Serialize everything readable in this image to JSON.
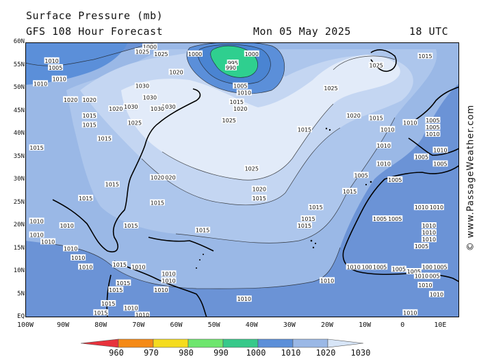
{
  "header": {
    "title": "Surface Pressure (mb)",
    "subtitle": "GFS 108 Hour Forecast",
    "date": "Mon 05 May 2025",
    "time": "18 UTC"
  },
  "credit": "© www.PassageWeather.com",
  "map": {
    "lat_labels": [
      "60N",
      "55N",
      "50N",
      "45N",
      "40N",
      "35N",
      "30N",
      "25N",
      "20N",
      "15N",
      "10N",
      "5N",
      "EQ"
    ],
    "lon_labels": [
      "100W",
      "90W",
      "80W",
      "70W",
      "60W",
      "50W",
      "40W",
      "30W",
      "20W",
      "10W",
      "0",
      "10E"
    ],
    "isobar_labels": [
      {
        "text": "1000",
        "lon": -67,
        "lat": 59
      },
      {
        "text": "1025",
        "lon": -69,
        "lat": 58
      },
      {
        "text": "1025",
        "lon": -64,
        "lat": 57.5
      },
      {
        "text": "1010",
        "lon": -93,
        "lat": 56
      },
      {
        "text": "1005",
        "lon": -92,
        "lat": 54.5
      },
      {
        "text": "1010",
        "lon": -96,
        "lat": 51
      },
      {
        "text": "1010",
        "lon": -91,
        "lat": 52
      },
      {
        "text": "1020",
        "lon": -60,
        "lat": 53.5
      },
      {
        "text": "1000",
        "lon": -55,
        "lat": 57.5
      },
      {
        "text": "1000",
        "lon": -40,
        "lat": 57.5
      },
      {
        "text": "995",
        "lon": -45,
        "lat": 55.5
      },
      {
        "text": "990",
        "lon": -45.5,
        "lat": 54.5
      },
      {
        "text": "1005",
        "lon": -43,
        "lat": 50.5
      },
      {
        "text": "1010",
        "lon": -42,
        "lat": 49
      },
      {
        "text": "1015",
        "lon": -44,
        "lat": 47
      },
      {
        "text": "1020",
        "lon": -43,
        "lat": 45.5
      },
      {
        "text": "1030",
        "lon": -69,
        "lat": 50.5
      },
      {
        "text": "1030",
        "lon": -67,
        "lat": 48
      },
      {
        "text": "1030",
        "lon": -72,
        "lat": 46
      },
      {
        "text": "1030",
        "lon": -62,
        "lat": 46
      },
      {
        "text": "1030",
        "lon": -65,
        "lat": 45.5
      },
      {
        "text": "1020",
        "lon": -88,
        "lat": 47.5
      },
      {
        "text": "1020",
        "lon": -83,
        "lat": 47.5
      },
      {
        "text": "1020",
        "lon": -76,
        "lat": 45.5
      },
      {
        "text": "1015",
        "lon": -83,
        "lat": 44
      },
      {
        "text": "1015",
        "lon": -83,
        "lat": 42
      },
      {
        "text": "1025",
        "lon": -71,
        "lat": 42.5
      },
      {
        "text": "1015",
        "lon": -79,
        "lat": 39
      },
      {
        "text": "1025",
        "lon": -46,
        "lat": 43
      },
      {
        "text": "1025",
        "lon": -40,
        "lat": 32.5
      },
      {
        "text": "1025",
        "lon": -7,
        "lat": 55
      },
      {
        "text": "1025",
        "lon": -19,
        "lat": 50
      },
      {
        "text": "1015",
        "lon": 6,
        "lat": 57
      },
      {
        "text": "1020",
        "lon": -13,
        "lat": 44
      },
      {
        "text": "1015",
        "lon": -26,
        "lat": 41
      },
      {
        "text": "1015",
        "lon": -7,
        "lat": 43.5
      },
      {
        "text": "1010",
        "lon": -4,
        "lat": 41
      },
      {
        "text": "1010",
        "lon": 2,
        "lat": 42.5
      },
      {
        "text": "1010",
        "lon": -5,
        "lat": 37.5
      },
      {
        "text": "1005",
        "lon": 8,
        "lat": 43
      },
      {
        "text": "1005",
        "lon": 8,
        "lat": 41.5
      },
      {
        "text": "1010",
        "lon": 8,
        "lat": 40
      },
      {
        "text": "1010",
        "lon": 10,
        "lat": 36.5
      },
      {
        "text": "1005",
        "lon": 5,
        "lat": 35
      },
      {
        "text": "1005",
        "lon": 10,
        "lat": 33.5
      },
      {
        "text": "1010",
        "lon": -5,
        "lat": 33.5
      },
      {
        "text": "1005",
        "lon": -11,
        "lat": 31
      },
      {
        "text": "1005",
        "lon": -2,
        "lat": 30
      },
      {
        "text": "1015",
        "lon": -14,
        "lat": 27.5
      },
      {
        "text": "1015",
        "lon": -23,
        "lat": 24
      },
      {
        "text": "1015",
        "lon": -25,
        "lat": 21.5
      },
      {
        "text": "1015",
        "lon": -26,
        "lat": 20
      },
      {
        "text": "1005",
        "lon": -6,
        "lat": 21.5
      },
      {
        "text": "1005",
        "lon": -2,
        "lat": 21.5
      },
      {
        "text": "1010",
        "lon": 5,
        "lat": 24
      },
      {
        "text": "1010",
        "lon": 9,
        "lat": 24
      },
      {
        "text": "1010",
        "lon": 7,
        "lat": 20
      },
      {
        "text": "1010",
        "lon": 7,
        "lat": 18.5
      },
      {
        "text": "1010",
        "lon": 7,
        "lat": 17
      },
      {
        "text": "1005",
        "lon": 5,
        "lat": 15.5
      },
      {
        "text": "1010",
        "lon": -13,
        "lat": 11
      },
      {
        "text": "1005",
        "lon": -9,
        "lat": 11
      },
      {
        "text": "1005",
        "lon": -6,
        "lat": 11
      },
      {
        "text": "1005",
        "lon": -1,
        "lat": 10.5
      },
      {
        "text": "1005",
        "lon": 3,
        "lat": 10
      },
      {
        "text": "1005",
        "lon": 7,
        "lat": 11
      },
      {
        "text": "1005",
        "lon": 10,
        "lat": 11
      },
      {
        "text": "1005",
        "lon": 8,
        "lat": 9
      },
      {
        "text": "1010",
        "lon": 5,
        "lat": 9
      },
      {
        "text": "1010",
        "lon": -20,
        "lat": 8
      },
      {
        "text": "1010",
        "lon": -42,
        "lat": 4
      },
      {
        "text": "1010",
        "lon": 2,
        "lat": 1
      },
      {
        "text": "1010",
        "lon": 6,
        "lat": 7
      },
      {
        "text": "1010",
        "lon": 9,
        "lat": 5
      },
      {
        "text": "1015",
        "lon": -38,
        "lat": 26
      },
      {
        "text": "1020",
        "lon": -38,
        "lat": 28
      },
      {
        "text": "1015",
        "lon": -53,
        "lat": 19
      },
      {
        "text": "1015",
        "lon": -65,
        "lat": 25
      },
      {
        "text": "1015",
        "lon": -72,
        "lat": 20
      },
      {
        "text": "1015",
        "lon": -77,
        "lat": 29
      },
      {
        "text": "1015",
        "lon": -84,
        "lat": 26
      },
      {
        "text": "1020",
        "lon": -62,
        "lat": 30.5
      },
      {
        "text": "1020",
        "lon": -65,
        "lat": 30.5
      },
      {
        "text": "1010",
        "lon": -89,
        "lat": 20
      },
      {
        "text": "1010",
        "lon": -97,
        "lat": 18
      },
      {
        "text": "1010",
        "lon": -94,
        "lat": 16.5
      },
      {
        "text": "1010",
        "lon": -88,
        "lat": 15
      },
      {
        "text": "1010",
        "lon": -86,
        "lat": 13
      },
      {
        "text": "1010",
        "lon": -84,
        "lat": 11
      },
      {
        "text": "1015",
        "lon": -75,
        "lat": 11.5
      },
      {
        "text": "1010",
        "lon": -70,
        "lat": 11
      },
      {
        "text": "1010",
        "lon": -62,
        "lat": 9.5
      },
      {
        "text": "1010",
        "lon": -62,
        "lat": 8
      },
      {
        "text": "1015",
        "lon": -74,
        "lat": 7.5
      },
      {
        "text": "1010",
        "lon": -64,
        "lat": 6
      },
      {
        "text": "1015",
        "lon": -76,
        "lat": 6
      },
      {
        "text": "1015",
        "lon": -78,
        "lat": 3
      },
      {
        "text": "1010",
        "lon": -72,
        "lat": 2
      },
      {
        "text": "1010",
        "lon": -69,
        "lat": 0.5
      },
      {
        "text": "1015",
        "lon": -80,
        "lat": 1
      },
      {
        "text": "1015",
        "lon": -97,
        "lat": 37
      },
      {
        "text": "1010",
        "lon": -97,
        "lat": 21
      }
    ]
  },
  "colorbar": {
    "levels": [
      "960",
      "970",
      "980",
      "990",
      "1000",
      "1010",
      "1020",
      "1030"
    ],
    "colors": [
      "#e8323c",
      "#f58a16",
      "#f5dc1e",
      "#6ee66e",
      "#37c98a",
      "#5b8fd9",
      "#9ab8e6",
      "#d7e5f7"
    ]
  },
  "fill_colors": {
    "ocean_low": "#6b93d6",
    "band_1010": "#9ab8e6",
    "band_1015": "#adc6ec",
    "band_1020": "#c4d6f2",
    "band_1025": "#e2ebf9",
    "band_1000": "#5b8fd9",
    "band_995": "#2fcf8f",
    "land_line": "#000000"
  }
}
